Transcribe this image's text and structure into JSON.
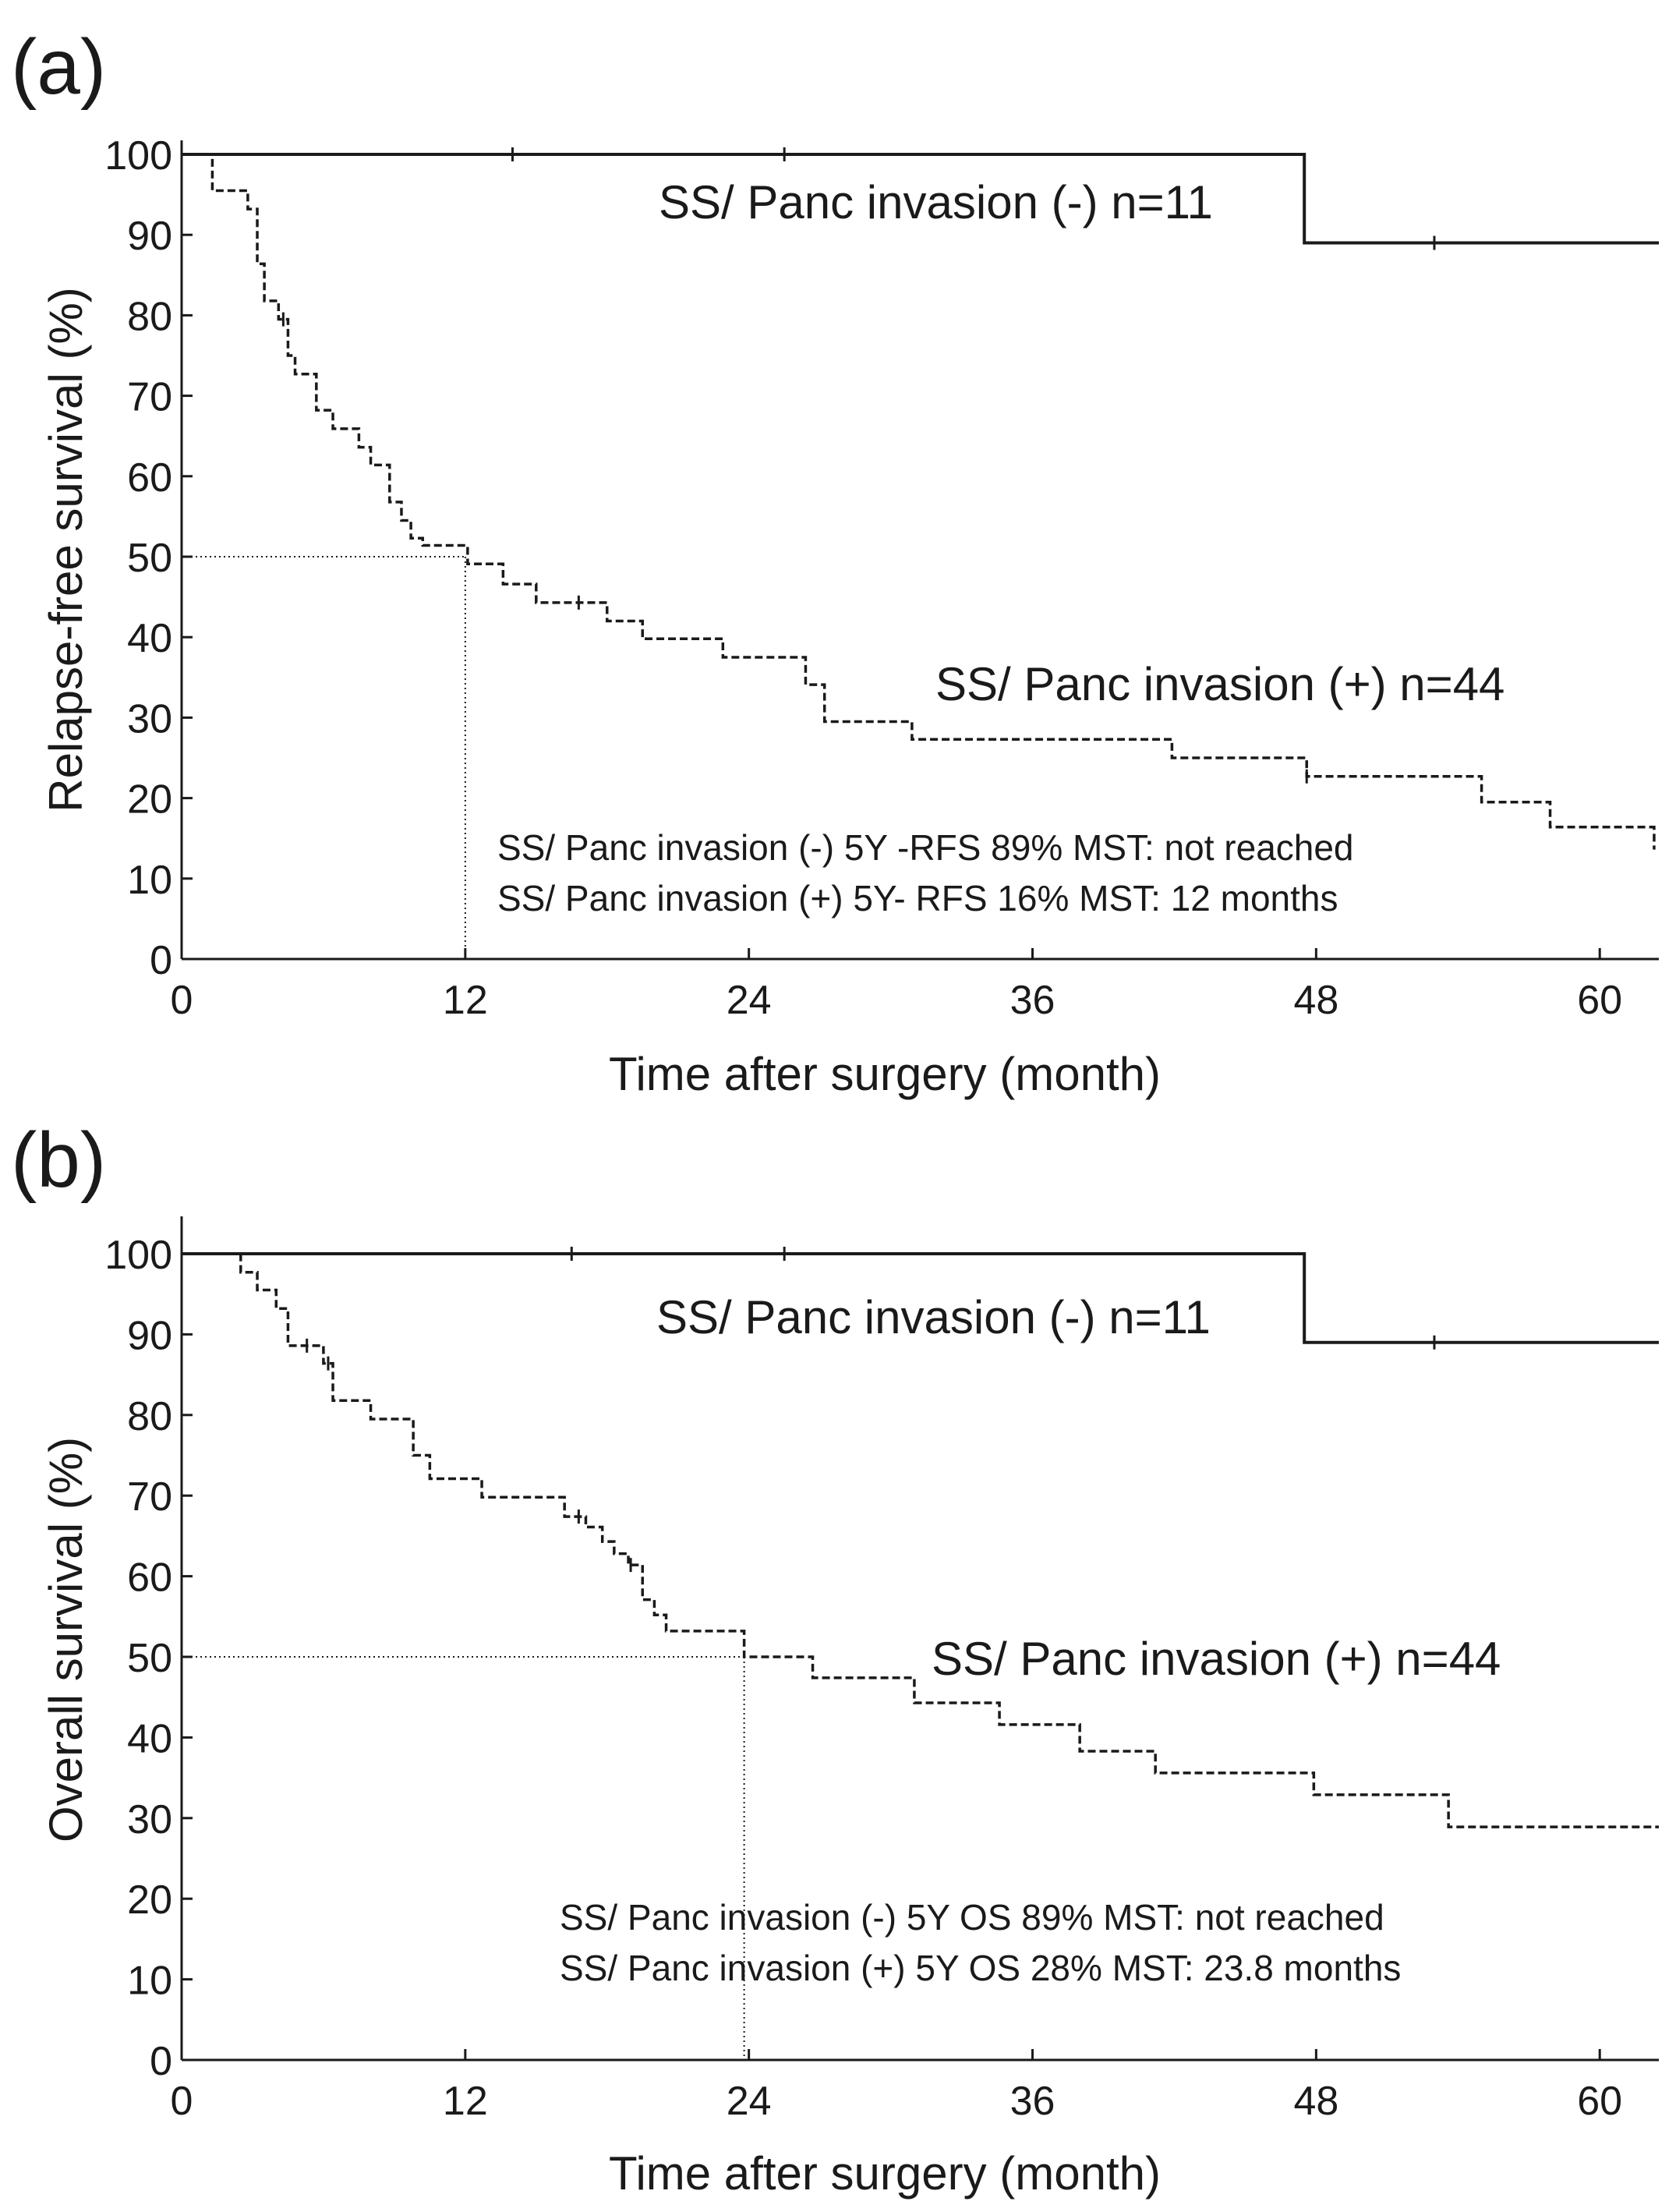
{
  "colors": {
    "ink": "#1a1a1a",
    "background": "#ffffff"
  },
  "chart_data": [
    {
      "type": "line",
      "panel_label": "(a)",
      "xlabel": "Time after surgery (month)",
      "ylabel": "Relapse-free survival (%)",
      "xlim": [
        0,
        62.5
      ],
      "ylim": [
        0,
        100
      ],
      "xticks": [
        "0",
        "12",
        "24",
        "36",
        "48",
        "60"
      ],
      "yticks": [
        "0",
        "10",
        "20",
        "30",
        "40",
        "50",
        "60",
        "70",
        "80",
        "90",
        "100"
      ],
      "grid": false,
      "median_guide": {
        "x": 12,
        "y": 50
      },
      "series": [
        {
          "name": "SS/ Panc invasion (-) n=11",
          "style": "solid",
          "x": [
            0,
            47.5,
            62.5
          ],
          "y": [
            100,
            89,
            89
          ],
          "censor_x": [
            14,
            25.5,
            53
          ]
        },
        {
          "name": "SS/ Panc invasion (+) n=44",
          "style": "dashed",
          "x": [
            1,
            1.3,
            2.8,
            3.2,
            3.5,
            4.1,
            4.5,
            4.8,
            5.7,
            6.4,
            7.5,
            8,
            8.8,
            9.3,
            9.7,
            10.2,
            12.1,
            13.6,
            15,
            18,
            19.5,
            22.9,
            26.4,
            27.2,
            30.9,
            41.9,
            47.6,
            55,
            57.9,
            62.3
          ],
          "y": [
            100,
            95.5,
            93.2,
            86.4,
            81.8,
            79.5,
            75,
            72.7,
            68.2,
            65.9,
            63.6,
            61.4,
            56.8,
            54.5,
            52.3,
            51.4,
            49.1,
            46.6,
            44.3,
            42,
            39.8,
            37.5,
            34.1,
            29.5,
            27.3,
            25,
            22.7,
            19.5,
            16.4,
            13.6
          ],
          "censor_x": [
            4.3,
            16.8,
            47.6
          ]
        }
      ],
      "annotations": [
        "SS/ Panc invasion (-)  5Y -RFS 89%  MST: not reached",
        "SS/ Panc invasion (+)  5Y- RFS 16%  MST: 12 months"
      ]
    },
    {
      "type": "line",
      "panel_label": "(b)",
      "xlabel": "Time after surgery (month)",
      "ylabel": "Overall survival (%)",
      "xlim": [
        0,
        62.5
      ],
      "ylim": [
        0,
        100
      ],
      "xticks": [
        "0",
        "12",
        "24",
        "36",
        "48",
        "60"
      ],
      "yticks": [
        "0",
        "10",
        "20",
        "30",
        "40",
        "50",
        "60",
        "70",
        "80",
        "90",
        "100"
      ],
      "grid": false,
      "median_guide": {
        "x": 23.8,
        "y": 50
      },
      "series": [
        {
          "name": "SS/ Panc invasion (-) n=11",
          "style": "solid",
          "x": [
            0,
            47.5,
            62.5
          ],
          "y": [
            100,
            89,
            89
          ],
          "censor_x": [
            16.5,
            25.5,
            53
          ]
        },
        {
          "name": "SS/ Panc invasion (+) n=44",
          "style": "dashed",
          "x": [
            1.5,
            2.5,
            3.2,
            4,
            4.5,
            6,
            6.4,
            8,
            9.8,
            10.5,
            12.7,
            16.2,
            17.1,
            17.8,
            18.3,
            18.9,
            19.5,
            20,
            20.5,
            23.8,
            25,
            26.7,
            31,
            34.6,
            38,
            41.2,
            47.9,
            53.6,
            62.5
          ],
          "y": [
            100,
            97.7,
            95.5,
            93.2,
            88.6,
            86.4,
            81.8,
            79.5,
            75,
            72.1,
            69.8,
            67.4,
            66.1,
            64.3,
            62.8,
            61.4,
            57.1,
            55.2,
            53.2,
            50,
            50,
            47.4,
            44.3,
            41.6,
            38.3,
            35.6,
            32.9,
            28.9,
            28.9
          ],
          "censor_x": [
            5.3,
            6.2,
            16.8,
            19
          ]
        }
      ],
      "annotations": [
        "SS/ Panc invasion (-)  5Y OS 89%  MST: not reached",
        "SS/ Panc invasion (+)  5Y OS 28%  MST: 23.8 months"
      ]
    }
  ]
}
